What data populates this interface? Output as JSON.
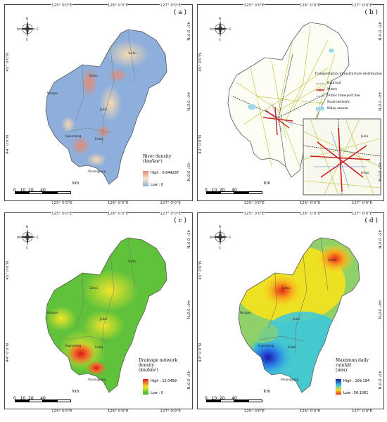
{
  "panels": [
    {
      "label": "( a )",
      "legend_title": "River density",
      "legend_unit": "(km/km²)",
      "legend_high": "High : 0.644297",
      "legend_low": "Low : 0",
      "top_ticks": [
        "125° 0'0\"E",
        "126° 0'0\"E",
        "127° 0'0\"E"
      ],
      "bottom_ticks": [
        "125° 0'0\"E",
        "126° 0'0\"E",
        "127° 0'0\"E"
      ],
      "left_ticks": [
        "45° 0'0\"N",
        "44° 0'0\"N"
      ],
      "right_ticks": [
        "45° 0'0\"N",
        "44° 0'0\"N",
        "43° 0'0\"N"
      ],
      "scale_labels": [
        "0",
        "10",
        "20",
        "40"
      ],
      "scale_unit": "km",
      "places": [
        "Nongan",
        "Dehui",
        "Yushu",
        "Jiutai",
        "Kuancheng",
        "Erdao",
        "Shuangyang"
      ],
      "colors": {
        "high": "#e58a70",
        "low": "#8eafdb"
      }
    },
    {
      "label": "( b )",
      "legend_heading": "Transportation infrastructure distribution",
      "legend_items": [
        "Railroad",
        "Metro",
        "Public transport line",
        "Road network",
        "Relay season"
      ],
      "colors": {
        "railroad": "#333333",
        "metro": "#cc1f1f",
        "bus": "#3a6fd8",
        "road": "#b8bf2a",
        "relay": "#9fd8e8"
      },
      "top_ticks": [
        "125° 0'0\"E",
        "126° 0'0\"E",
        "127° 0'0\"E"
      ],
      "bottom_ticks": [
        "125° 0'0\"E",
        "126° 0'0\"E",
        "127° 0'0\"E"
      ],
      "left_ticks": [
        "45° 0'0\"N",
        "44° 0'0\"N"
      ],
      "right_ticks": [
        "45° 0'0\"N",
        "44° 0'0\"N",
        "43° 0'0\"N"
      ],
      "scale_labels": [
        "0",
        "10",
        "20",
        "40"
      ],
      "scale_unit": "km",
      "inset_places": [
        "Jiutai",
        "Erdao"
      ]
    },
    {
      "label": "( c )",
      "legend_title": "Drainage network density",
      "legend_unit": "(km/km²)",
      "legend_high": "High : 12.0499",
      "legend_low": "Low : 0",
      "top_ticks": [
        "125° 0'0\"E",
        "126° 0'0\"E",
        "127° 0'0\"E"
      ],
      "bottom_ticks": [
        "125° 0'0\"E",
        "126° 0'0\"E",
        "127° 0'0\"E"
      ],
      "left_ticks": [
        "45° 0'0\"N",
        "44° 0'0\"N"
      ],
      "right_ticks": [
        "45° 0'0\"N",
        "44° 0'0\"N",
        "43° 0'0\"N"
      ],
      "scale_labels": [
        "0",
        "10",
        "20",
        "40"
      ],
      "scale_unit": "km",
      "places": [
        "Nongan",
        "Dehui",
        "Yushu",
        "Jiutai",
        "Kuancheng",
        "Erdao",
        "Shuangyang"
      ],
      "colors": {
        "high": "#e02020",
        "mid": "#f2e52a",
        "low": "#2fb52f"
      }
    },
    {
      "label": "( d )",
      "legend_title": "Maximum daily rainfall",
      "legend_unit": "(mm)",
      "legend_high": "High : 109.194",
      "legend_low": "Low : 56.1081",
      "top_ticks": [
        "125° 0'0\"E",
        "126° 0'0\"E",
        "127° 0'0\"E"
      ],
      "bottom_ticks": [
        "125° 0'0\"E",
        "126° 0'0\"E",
        "127° 0'0\"E"
      ],
      "left_ticks": [
        "45° 0'0\"N",
        "44° 0'0\"N"
      ],
      "right_ticks": [
        "45° 0'0\"N",
        "44° 0'0\"N",
        "43° 0'0\"N"
      ],
      "scale_labels": [
        "0",
        "10",
        "20",
        "40"
      ],
      "scale_unit": "km",
      "places": [
        "Nongan",
        "Dehui",
        "Yushu",
        "Jiutai",
        "Kuancheng",
        "Erdao",
        "Shuangyang"
      ],
      "colors": {
        "high": "#1a1aa8",
        "mid": "#38c8e0",
        "low": "#e62a1a"
      }
    }
  ],
  "compass": {
    "n": "N",
    "s": "S",
    "e": "E",
    "w": "W"
  }
}
